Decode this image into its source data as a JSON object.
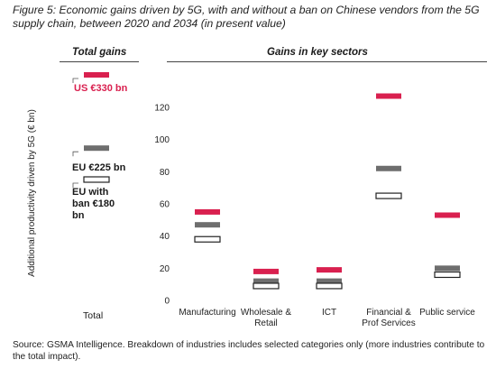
{
  "figure": {
    "title": "Figure 5: Economic gains driven by 5G, with and without a ban on Chinese vendors from the 5G supply chain, between 2020 and 2034 (in present value)",
    "source": "Source: GSMA Intelligence. Breakdown of industries includes selected categories only (more industries contribute to the total impact)."
  },
  "panels": {
    "total_heading": "Total gains",
    "sectors_heading": "Gains in key sectors"
  },
  "total_labels": {
    "us": "US €330 bn",
    "eu": "EU €225 bn",
    "eu_ban": "EU with ban €180 bn",
    "category": "Total"
  },
  "colors": {
    "us": "#d9204f",
    "eu": "#6e6e6e",
    "eu_ban_fill": "#ffffff",
    "eu_ban_stroke": "#222222"
  },
  "chart_data": [
    {
      "type": "bar",
      "panel": "Total gains",
      "categories": [
        "Total"
      ],
      "series": [
        {
          "name": "US €330 bn",
          "values": [
            330
          ]
        },
        {
          "name": "EU €225 bn",
          "values": [
            225
          ]
        },
        {
          "name": "EU with ban €180 bn",
          "values": [
            180
          ]
        }
      ]
    },
    {
      "type": "bar",
      "panel": "Gains in key sectors",
      "categories": [
        "Manufacturing",
        "Wholesale & Retail",
        "ICT",
        "Financial & Prof Services",
        "Public service"
      ],
      "series": [
        {
          "name": "US",
          "values": [
            55,
            18,
            19,
            127,
            53
          ]
        },
        {
          "name": "EU",
          "values": [
            47,
            12,
            12,
            82,
            20
          ]
        },
        {
          "name": "EU with ban",
          "values": [
            38,
            9,
            9,
            65,
            16
          ]
        }
      ],
      "ylabel": "Additional productivity driven by 5G (€ bn)",
      "ylim": [
        0,
        130
      ],
      "yticks": [
        0,
        20,
        40,
        60,
        80,
        100,
        120
      ],
      "xtick_labels": [
        [
          "Manufacturing"
        ],
        [
          "Wholesale &",
          "Retail"
        ],
        [
          "ICT"
        ],
        [
          "Financial &",
          "Prof Services"
        ],
        [
          "Public service"
        ]
      ],
      "grid": false
    }
  ]
}
